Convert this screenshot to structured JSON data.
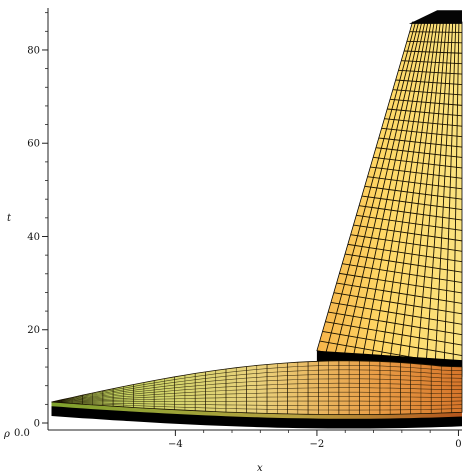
{
  "chart_data": {
    "type": "surface3d",
    "xlabel": "x",
    "ylabel": "t",
    "zlabel": "ρ",
    "z_tick_label": "0.0",
    "x_ticks": [
      -4,
      -2,
      0
    ],
    "t_ticks": [
      0,
      20,
      40,
      60,
      80
    ],
    "xlim": [
      -5.8,
      0.05
    ],
    "tlim": [
      -1.5,
      89
    ],
    "grid": false,
    "colors": {
      "ramp_light": "#ffe879",
      "ramp_dark": "#f2a33a",
      "lower_green": "#b9d858",
      "lower_orange": "#e2852e",
      "mesh": "#1a1200",
      "shadow": "#000000"
    },
    "surface_outline": {
      "ramp": [
        {
          "x": -2.0,
          "t": 15.5
        },
        {
          "x": -0.65,
          "t": 86.0
        },
        {
          "x": 0.05,
          "t": 86.0
        },
        {
          "x": 0.05,
          "t": 10.0
        }
      ],
      "lower_sheet": [
        {
          "x": -5.75,
          "t": 4.5
        },
        {
          "x": -4.0,
          "t": 10.0
        },
        {
          "x": -2.0,
          "t": 14.0
        },
        {
          "x": 0.05,
          "t": 13.0
        },
        {
          "x": 0.05,
          "t": 2.0
        },
        {
          "x": -2.0,
          "t": 0.8
        },
        {
          "x": -5.75,
          "t": 0.5
        }
      ]
    }
  }
}
